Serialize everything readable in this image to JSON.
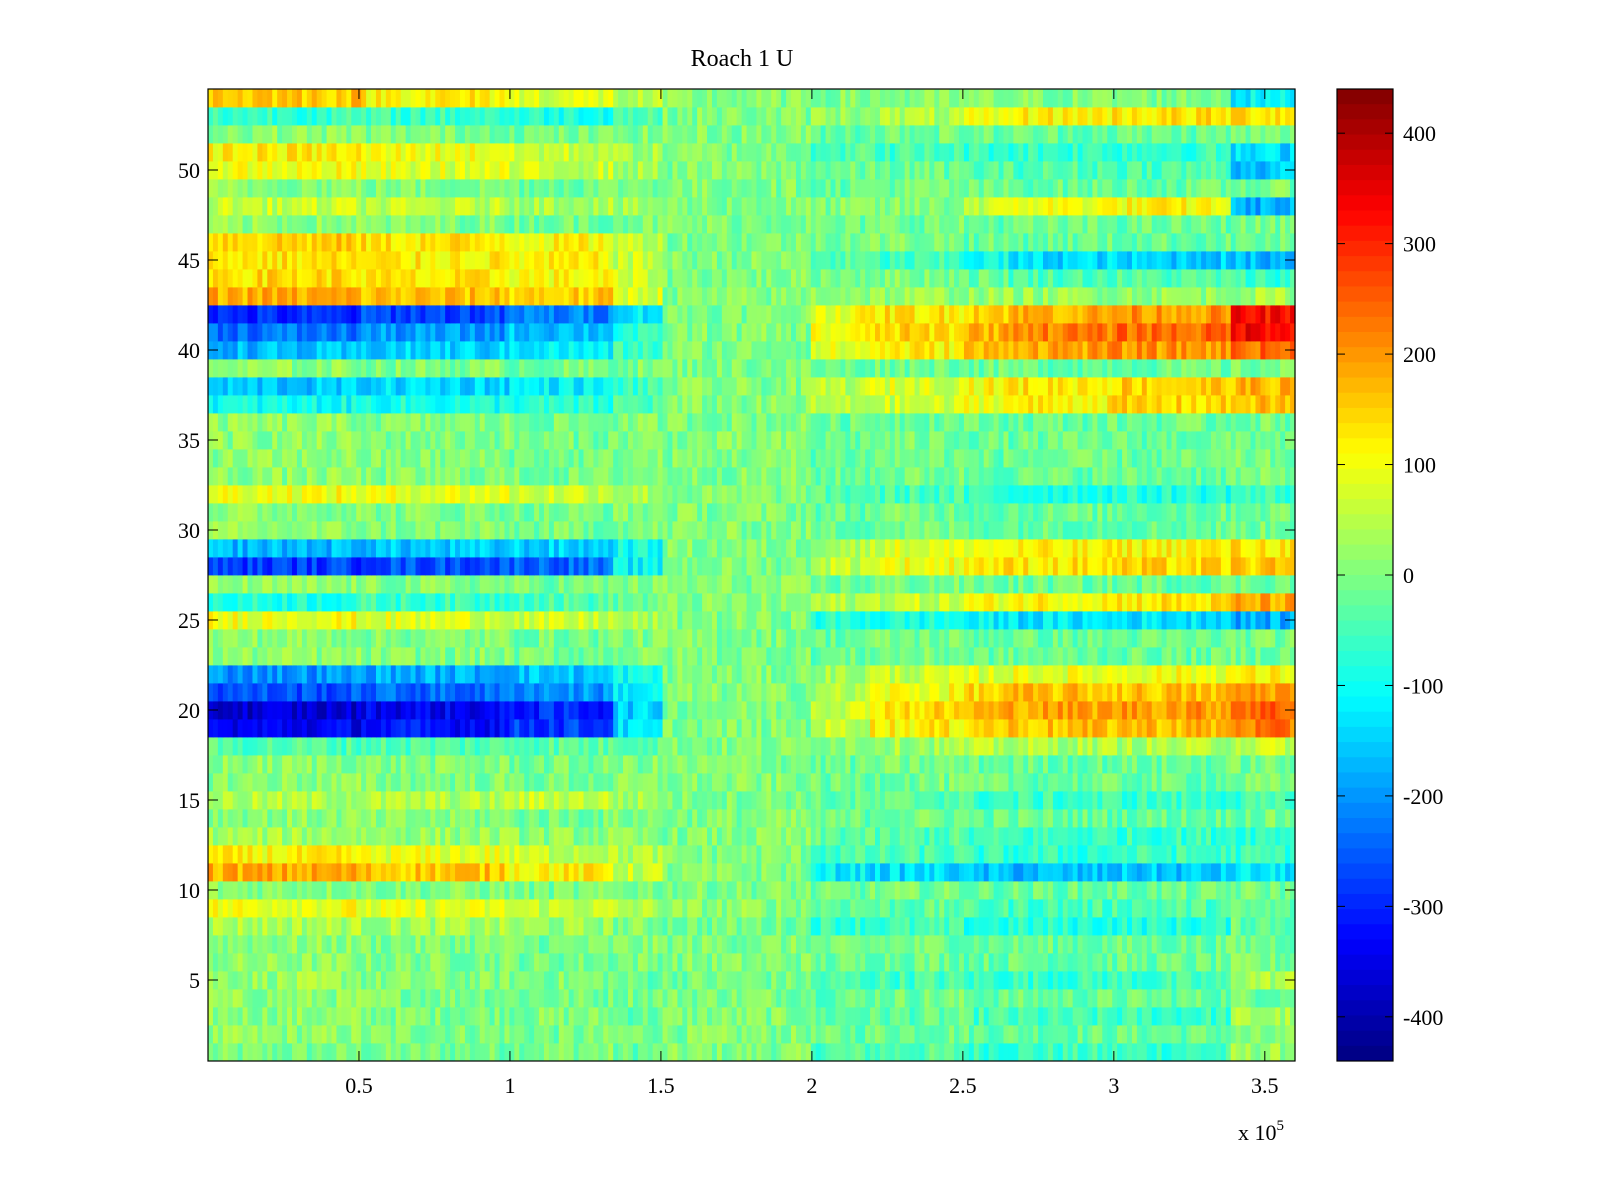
{
  "chart_data": {
    "type": "heatmap",
    "title": "Roach 1 U",
    "xlabel": "",
    "ylabel": "",
    "x_multiplier": "x 10",
    "x_multiplier_exponent": "5",
    "xlim": [
      0,
      360000
    ],
    "ylim": [
      0.5,
      54.5
    ],
    "x_ticks": [
      0.5,
      1,
      1.5,
      2,
      2.5,
      3,
      3.5
    ],
    "x_tick_labels": [
      "0.5",
      "1",
      "1.5",
      "2",
      "2.5",
      "3",
      "3.5"
    ],
    "y_ticks": [
      5,
      10,
      15,
      20,
      25,
      30,
      35,
      40,
      45,
      50
    ],
    "y_tick_labels": [
      "5",
      "10",
      "15",
      "20",
      "25",
      "30",
      "35",
      "40",
      "45",
      "50"
    ],
    "colorbar": {
      "colormap": "jet",
      "clim": [
        -440,
        440
      ],
      "ticks": [
        400,
        300,
        200,
        100,
        0,
        -100,
        -200,
        -300,
        -400
      ],
      "tick_labels": [
        "400",
        "300",
        "200",
        "100",
        "0",
        "-100",
        "-200",
        "-300",
        "-400"
      ]
    },
    "rows": 54,
    "time_segments_x1e5": [
      0,
      0.5,
      1,
      1.35,
      1.5,
      2,
      2.2,
      2.5,
      2.65,
      3,
      3.38,
      3.6
    ],
    "row_values": {
      "1": [
        -10,
        -10,
        0,
        -20,
        0,
        -40,
        -40,
        -60,
        -60,
        -60,
        20
      ],
      "3": [
        10,
        0,
        0,
        -20,
        0,
        -30,
        -30,
        -50,
        -60,
        -60,
        30
      ],
      "5": [
        20,
        0,
        0,
        -20,
        -10,
        -50,
        -50,
        -60,
        -60,
        -60,
        40
      ],
      "8": [
        40,
        30,
        20,
        0,
        -10,
        -60,
        -60,
        -80,
        -80,
        -80,
        -20
      ],
      "9": [
        100,
        80,
        60,
        40,
        10,
        -20,
        -30,
        -50,
        -50,
        -40,
        -30
      ],
      "11": [
        180,
        160,
        120,
        60,
        0,
        -120,
        -140,
        -170,
        -170,
        -160,
        -130
      ],
      "12": [
        110,
        90,
        60,
        40,
        0,
        -50,
        -50,
        -70,
        -70,
        -60,
        -60
      ],
      "13": [
        30,
        20,
        10,
        0,
        0,
        -30,
        -40,
        -60,
        -60,
        -60,
        -60
      ],
      "15": [
        40,
        40,
        60,
        30,
        0,
        -30,
        -30,
        -60,
        -60,
        -60,
        -60
      ],
      "18": [
        -40,
        -40,
        -30,
        -20,
        0,
        20,
        30,
        40,
        40,
        40,
        60
      ],
      "19": [
        -340,
        -320,
        -280,
        -140,
        0,
        60,
        120,
        150,
        160,
        170,
        220
      ],
      "20": [
        -370,
        -340,
        -300,
        -150,
        0,
        70,
        140,
        170,
        190,
        200,
        250
      ],
      "21": [
        -260,
        -240,
        -200,
        -120,
        0,
        40,
        100,
        140,
        160,
        160,
        200
      ],
      "22": [
        -200,
        -180,
        -160,
        -100,
        0,
        30,
        60,
        80,
        90,
        100,
        110
      ],
      "25": [
        100,
        80,
        60,
        30,
        0,
        -80,
        -90,
        -120,
        -130,
        -130,
        -180
      ],
      "26": [
        -80,
        -60,
        -40,
        -20,
        0,
        40,
        60,
        100,
        120,
        130,
        180
      ],
      "28": [
        -280,
        -260,
        -240,
        -120,
        0,
        60,
        100,
        130,
        130,
        140,
        150
      ],
      "29": [
        -170,
        -160,
        -150,
        -100,
        0,
        40,
        80,
        100,
        110,
        120,
        130
      ],
      "32": [
        100,
        90,
        70,
        40,
        0,
        -40,
        -50,
        -70,
        -80,
        -80,
        -60
      ],
      "37": [
        -100,
        -90,
        -80,
        -40,
        0,
        40,
        60,
        100,
        120,
        140,
        160
      ],
      "38": [
        -160,
        -140,
        -120,
        -60,
        0,
        50,
        80,
        110,
        130,
        150,
        170
      ],
      "40": [
        -170,
        -150,
        -120,
        -60,
        0,
        80,
        120,
        160,
        190,
        200,
        240
      ],
      "41": [
        -230,
        -200,
        -160,
        -80,
        0,
        100,
        140,
        180,
        220,
        240,
        340
      ],
      "42": [
        -300,
        -270,
        -220,
        -120,
        0,
        100,
        130,
        160,
        180,
        200,
        320
      ],
      "43": [
        180,
        160,
        150,
        80,
        0,
        20,
        20,
        20,
        20,
        20,
        30
      ],
      "44": [
        140,
        120,
        110,
        60,
        0,
        0,
        0,
        -20,
        -40,
        -40,
        -60
      ],
      "45": [
        130,
        120,
        110,
        60,
        0,
        -40,
        -60,
        -100,
        -140,
        -150,
        -170
      ],
      "46": [
        150,
        130,
        110,
        60,
        0,
        0,
        0,
        -20,
        -20,
        -20,
        -20
      ],
      "48": [
        60,
        50,
        40,
        20,
        0,
        0,
        0,
        60,
        100,
        110,
        -180
      ],
      "50": [
        100,
        80,
        60,
        30,
        0,
        -20,
        -20,
        -40,
        -40,
        -40,
        -160
      ],
      "51": [
        120,
        100,
        60,
        30,
        0,
        -40,
        -50,
        -60,
        -60,
        -60,
        -140
      ],
      "53": [
        -60,
        -60,
        -80,
        -40,
        0,
        20,
        40,
        80,
        120,
        130,
        140
      ],
      "54": [
        160,
        120,
        80,
        40,
        0,
        0,
        0,
        0,
        0,
        0,
        -120
      ]
    }
  }
}
